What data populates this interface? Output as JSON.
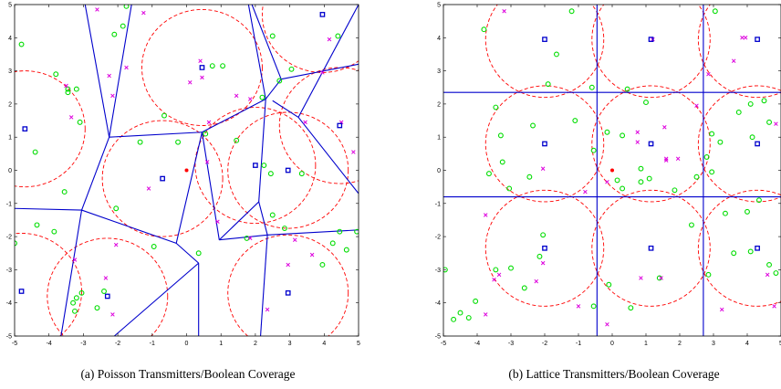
{
  "figure": {
    "captions": [
      "(a) Poisson Transmitters/Boolean Coverage",
      "(b) Lattice Transmitters/Boolean Coverage"
    ]
  },
  "colors": {
    "voronoi": "#0000cc",
    "coverage": "#ff0000",
    "transmitter": "#0000cc",
    "active_receiver": "#00dd00",
    "inactive_receiver": "#dd00dd",
    "origin": "#ff0000"
  },
  "chart_data": [
    {
      "type": "scatter",
      "title": "",
      "xlabel": "",
      "ylabel": "",
      "xlim": [
        -5,
        5
      ],
      "ylim": [
        -5,
        5
      ],
      "xticks": [
        "-5",
        "-4",
        "-3",
        "-2",
        "-1",
        "0",
        "1",
        "2",
        "3",
        "4",
        "5"
      ],
      "yticks": [
        "-5",
        "-4",
        "-3",
        "-2",
        "-1",
        "0",
        "1",
        "2",
        "3",
        "4",
        "5"
      ],
      "grid": false,
      "coverage_radius": 1.75,
      "origin": [
        0,
        0
      ],
      "transmitters": [
        [
          -4.7,
          1.25
        ],
        [
          -0.7,
          -0.25
        ],
        [
          0.45,
          3.1
        ],
        [
          2.0,
          0.15
        ],
        [
          2.95,
          0.0
        ],
        [
          4.45,
          1.35
        ],
        [
          3.95,
          4.7
        ],
        [
          -4.8,
          -3.65
        ],
        [
          -2.3,
          -3.8
        ],
        [
          2.95,
          -3.7
        ]
      ],
      "voronoi_edges": [
        [
          [
            -2.25,
            1.0
          ],
          [
            -3.05,
            -1.2
          ]
        ],
        [
          [
            -5.0,
            -1.15
          ],
          [
            -3.05,
            -1.2
          ]
        ],
        [
          [
            -3.05,
            -1.2
          ],
          [
            -0.3,
            -2.2
          ]
        ],
        [
          [
            -3.05,
            -1.2
          ],
          [
            -3.65,
            -5.0
          ]
        ],
        [
          [
            -0.3,
            -2.2
          ],
          [
            0.35,
            -2.8
          ]
        ],
        [
          [
            0.35,
            -2.8
          ],
          [
            0.35,
            -5.0
          ]
        ],
        [
          [
            0.35,
            -2.8
          ],
          [
            -2.1,
            -5.0
          ]
        ],
        [
          [
            -0.3,
            -2.2
          ],
          [
            0.45,
            1.15
          ]
        ],
        [
          [
            -2.25,
            1.0
          ],
          [
            -2.95,
            5.0
          ]
        ],
        [
          [
            -2.25,
            1.0
          ],
          [
            -1.6,
            5.0
          ]
        ],
        [
          [
            -2.25,
            1.0
          ],
          [
            0.45,
            1.15
          ]
        ],
        [
          [
            0.45,
            1.15
          ],
          [
            2.3,
            2.15
          ]
        ],
        [
          [
            2.3,
            2.15
          ],
          [
            1.8,
            5.0
          ]
        ],
        [
          [
            2.3,
            2.15
          ],
          [
            2.75,
            2.75
          ]
        ],
        [
          [
            2.75,
            2.75
          ],
          [
            1.9,
            5.0
          ]
        ],
        [
          [
            2.75,
            2.75
          ],
          [
            5.0,
            3.2
          ]
        ],
        [
          [
            2.3,
            2.15
          ],
          [
            2.1,
            -0.95
          ]
        ],
        [
          [
            2.1,
            -0.95
          ],
          [
            2.35,
            -1.95
          ]
        ],
        [
          [
            2.1,
            -0.95
          ],
          [
            0.95,
            -2.1
          ]
        ],
        [
          [
            0.95,
            -2.1
          ],
          [
            0.45,
            1.15
          ]
        ],
        [
          [
            2.5,
            2.1
          ],
          [
            3.25,
            1.6
          ]
        ],
        [
          [
            3.25,
            1.6
          ],
          [
            5.0,
            -0.7
          ]
        ],
        [
          [
            3.25,
            1.6
          ],
          [
            5.0,
            5.0
          ]
        ],
        [
          [
            0.95,
            -2.1
          ],
          [
            2.35,
            -1.95
          ]
        ],
        [
          [
            2.35,
            -1.95
          ],
          [
            5.0,
            -1.8
          ]
        ],
        [
          [
            2.35,
            -1.95
          ],
          [
            2.15,
            -5.0
          ]
        ]
      ],
      "active_receivers": [
        [
          -4.8,
          3.8
        ],
        [
          -3.8,
          2.9
        ],
        [
          -3.45,
          2.35
        ],
        [
          -3.2,
          2.45
        ],
        [
          -3.45,
          2.45
        ],
        [
          -3.1,
          1.45
        ],
        [
          -4.4,
          0.55
        ],
        [
          -3.55,
          -0.65
        ],
        [
          -2.1,
          4.1
        ],
        [
          -1.85,
          4.35
        ],
        [
          -1.75,
          4.95
        ],
        [
          -1.35,
          0.85
        ],
        [
          -0.25,
          0.85
        ],
        [
          -0.65,
          1.65
        ],
        [
          0.75,
          3.15
        ],
        [
          1.05,
          3.15
        ],
        [
          1.45,
          0.9
        ],
        [
          0.55,
          1.1
        ],
        [
          2.7,
          2.7
        ],
        [
          2.2,
          2.2
        ],
        [
          3.05,
          3.05
        ],
        [
          2.25,
          0.15
        ],
        [
          2.45,
          -0.1
        ],
        [
          3.35,
          -0.1
        ],
        [
          2.5,
          -1.35
        ],
        [
          2.85,
          -1.75
        ],
        [
          1.75,
          -2.05
        ],
        [
          -2.05,
          -1.15
        ],
        [
          -0.95,
          -2.3
        ],
        [
          0.35,
          -2.5
        ],
        [
          -4.35,
          -1.65
        ],
        [
          -3.85,
          -1.85
        ],
        [
          -3.05,
          -3.7
        ],
        [
          -3.3,
          -4.0
        ],
        [
          -2.4,
          -3.65
        ],
        [
          -2.6,
          -4.15
        ],
        [
          -3.2,
          -3.85
        ],
        [
          -3.25,
          -4.25
        ],
        [
          -5.0,
          -2.2
        ],
        [
          4.25,
          -2.2
        ],
        [
          4.65,
          -2.4
        ],
        [
          4.45,
          -1.85
        ],
        [
          3.95,
          -2.85
        ],
        [
          4.95,
          -1.85
        ],
        [
          4.4,
          4.05
        ],
        [
          2.5,
          4.05
        ]
      ],
      "inactive_receivers": [
        [
          -2.6,
          4.85
        ],
        [
          -1.25,
          4.75
        ],
        [
          -2.25,
          2.85
        ],
        [
          -2.15,
          2.25
        ],
        [
          -3.35,
          1.6
        ],
        [
          -3.5,
          2.55
        ],
        [
          -1.75,
          3.1
        ],
        [
          0.4,
          3.3
        ],
        [
          0.45,
          2.8
        ],
        [
          0.1,
          2.65
        ],
        [
          0.65,
          1.45
        ],
        [
          1.45,
          2.25
        ],
        [
          1.85,
          2.15
        ],
        [
          4.15,
          3.95
        ],
        [
          3.95,
          2.95
        ],
        [
          4.5,
          1.45
        ],
        [
          3.45,
          1.45
        ],
        [
          4.85,
          0.55
        ],
        [
          0.6,
          0.25
        ],
        [
          -1.1,
          -0.55
        ],
        [
          -2.05,
          -2.25
        ],
        [
          0.9,
          -1.55
        ],
        [
          1.85,
          -2.05
        ],
        [
          3.15,
          -2.1
        ],
        [
          3.65,
          -2.55
        ],
        [
          2.95,
          -2.85
        ],
        [
          -2.35,
          -3.25
        ],
        [
          -3.25,
          -2.7
        ],
        [
          -2.15,
          -4.35
        ],
        [
          2.35,
          -4.2
        ]
      ]
    },
    {
      "type": "scatter",
      "title": "",
      "xlabel": "",
      "ylabel": "",
      "xlim": [
        -5,
        5
      ],
      "ylim": [
        -5,
        5
      ],
      "xticks": [
        "-5",
        "-4",
        "-3",
        "-2",
        "-1",
        "0",
        "1",
        "2",
        "3",
        "4",
        "5"
      ],
      "yticks": [
        "-5",
        "-4",
        "-3",
        "-2",
        "-1",
        "0",
        "1",
        "2",
        "3",
        "4",
        "5"
      ],
      "grid": false,
      "coverage_radius": 1.75,
      "origin": [
        0,
        0
      ],
      "transmitters": [
        [
          -2.0,
          3.95
        ],
        [
          1.15,
          3.95
        ],
        [
          4.3,
          3.95
        ],
        [
          -2.0,
          0.8
        ],
        [
          1.15,
          0.8
        ],
        [
          4.3,
          0.8
        ],
        [
          -2.0,
          -2.35
        ],
        [
          1.15,
          -2.35
        ],
        [
          4.3,
          -2.35
        ]
      ],
      "lattice_vertical_lines": [
        -0.45,
        2.7
      ],
      "lattice_horizontal_lines": [
        2.35,
        -0.8
      ],
      "active_receivers": [
        [
          -1.2,
          4.8
        ],
        [
          -3.8,
          4.25
        ],
        [
          -1.65,
          3.5
        ],
        [
          -1.9,
          2.6
        ],
        [
          -0.6,
          2.5
        ],
        [
          0.45,
          2.45
        ],
        [
          1.0,
          2.05
        ],
        [
          -3.45,
          1.9
        ],
        [
          -1.1,
          1.5
        ],
        [
          -0.15,
          1.15
        ],
        [
          0.3,
          1.05
        ],
        [
          -3.3,
          1.05
        ],
        [
          -2.35,
          1.35
        ],
        [
          -0.55,
          0.6
        ],
        [
          -3.25,
          0.25
        ],
        [
          -3.65,
          -0.1
        ],
        [
          -2.45,
          -0.2
        ],
        [
          -3.05,
          -0.55
        ],
        [
          0.3,
          -0.55
        ],
        [
          0.85,
          -0.35
        ],
        [
          0.85,
          0.05
        ],
        [
          1.1,
          -0.25
        ],
        [
          1.85,
          -0.6
        ],
        [
          2.5,
          -0.2
        ],
        [
          2.95,
          -0.05
        ],
        [
          2.8,
          0.4
        ],
        [
          3.2,
          0.85
        ],
        [
          2.95,
          1.1
        ],
        [
          3.75,
          1.75
        ],
        [
          4.1,
          2.0
        ],
        [
          4.5,
          2.1
        ],
        [
          4.65,
          1.45
        ],
        [
          4.15,
          1.0
        ],
        [
          4.0,
          -1.25
        ],
        [
          4.35,
          -0.9
        ],
        [
          3.35,
          -1.3
        ],
        [
          2.35,
          -1.65
        ],
        [
          0.15,
          -0.3
        ],
        [
          -2.05,
          -1.95
        ],
        [
          -3.0,
          -2.95
        ],
        [
          -2.15,
          -2.6
        ],
        [
          -3.45,
          -3.0
        ],
        [
          -2.6,
          -3.55
        ],
        [
          -0.1,
          -3.45
        ],
        [
          1.4,
          -3.25
        ],
        [
          -4.95,
          -3.0
        ],
        [
          -4.7,
          -4.5
        ],
        [
          -4.5,
          -4.3
        ],
        [
          -4.25,
          -4.45
        ],
        [
          -4.05,
          -3.95
        ],
        [
          4.1,
          -2.45
        ],
        [
          4.65,
          -2.85
        ],
        [
          4.85,
          -3.1
        ],
        [
          3.6,
          -2.5
        ],
        [
          2.85,
          -3.15
        ],
        [
          0.55,
          -4.15
        ],
        [
          -0.55,
          -4.1
        ],
        [
          3.05,
          4.8
        ]
      ],
      "inactive_receivers": [
        [
          -3.2,
          4.8
        ],
        [
          1.2,
          3.95
        ],
        [
          3.85,
          4.0
        ],
        [
          3.6,
          3.3
        ],
        [
          2.85,
          2.9
        ],
        [
          2.5,
          1.95
        ],
        [
          4.85,
          1.4
        ],
        [
          0.75,
          1.15
        ],
        [
          0.75,
          0.85
        ],
        [
          1.55,
          1.3
        ],
        [
          1.6,
          0.3
        ],
        [
          1.95,
          0.35
        ],
        [
          -2.05,
          0.05
        ],
        [
          -0.8,
          -0.65
        ],
        [
          -0.15,
          -0.35
        ],
        [
          0.85,
          -3.25
        ],
        [
          -1.0,
          -4.1
        ],
        [
          -3.5,
          -3.3
        ],
        [
          -3.35,
          -3.15
        ],
        [
          -3.75,
          -4.35
        ],
        [
          -3.75,
          -1.35
        ],
        [
          -2.25,
          -3.35
        ],
        [
          1.45,
          -3.25
        ],
        [
          4.6,
          -3.15
        ],
        [
          4.8,
          -4.1
        ],
        [
          3.25,
          -4.2
        ],
        [
          -0.15,
          -4.65
        ],
        [
          -2.05,
          -2.8
        ],
        [
          3.95,
          4.0
        ],
        [
          1.6,
          0.35
        ]
      ]
    }
  ]
}
